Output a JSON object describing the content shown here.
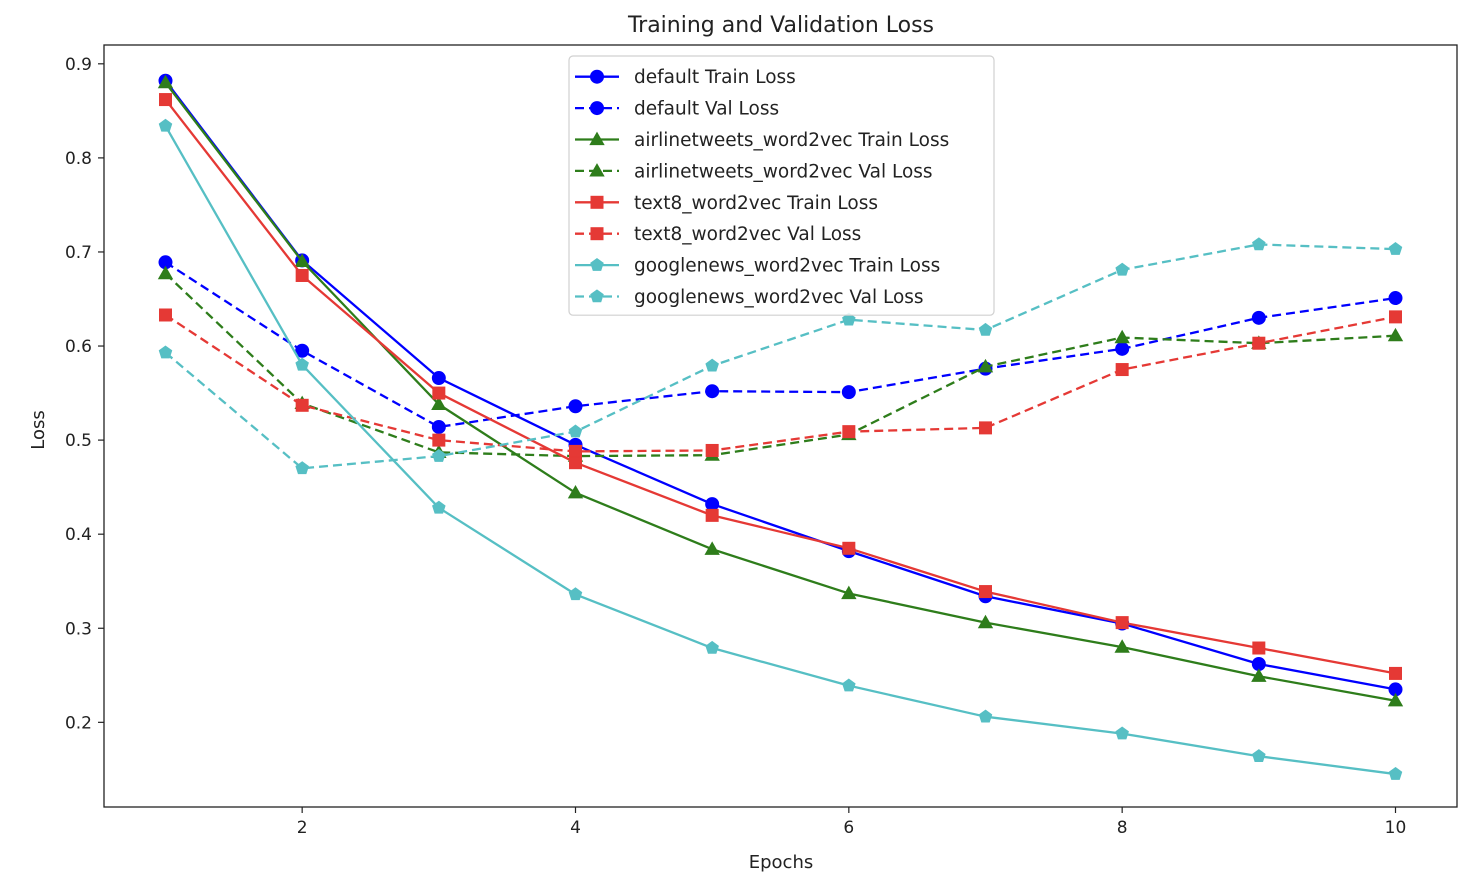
{
  "chart_data": {
    "type": "line",
    "title": "Training and Validation Loss",
    "xlabel": "Epochs",
    "ylabel": "Loss",
    "xlim": [
      0.55,
      10.45
    ],
    "ylim": [
      0.11,
      0.92
    ],
    "x_ticks": [
      2,
      4,
      6,
      8,
      10
    ],
    "y_ticks": [
      0.2,
      0.3,
      0.4,
      0.5,
      0.6,
      0.7,
      0.8,
      0.9
    ],
    "x_tick_labels": [
      "2",
      "4",
      "6",
      "8",
      "10"
    ],
    "y_tick_labels": [
      "0.2",
      "0.3",
      "0.4",
      "0.5",
      "0.6",
      "0.7",
      "0.8",
      "0.9"
    ],
    "grid": false,
    "legend_position": "top-center",
    "x": [
      1,
      2,
      3,
      4,
      5,
      6,
      7,
      8,
      9,
      10
    ],
    "series": [
      {
        "name": "default Train Loss",
        "color": "#0000ff",
        "dash": "solid",
        "marker": "circle",
        "values": [
          0.882,
          0.691,
          0.566,
          0.495,
          0.432,
          0.382,
          0.334,
          0.305,
          0.262,
          0.235
        ]
      },
      {
        "name": "default Val Loss",
        "color": "#0000ff",
        "dash": "dashed",
        "marker": "circle",
        "values": [
          0.689,
          0.595,
          0.514,
          0.536,
          0.552,
          0.551,
          0.576,
          0.597,
          0.63,
          0.651
        ]
      },
      {
        "name": "airlinetweets_word2vec Train Loss",
        "color": "#2e7d1b",
        "dash": "solid",
        "marker": "triangle",
        "values": [
          0.88,
          0.69,
          0.538,
          0.444,
          0.384,
          0.337,
          0.306,
          0.28,
          0.249,
          0.223
        ]
      },
      {
        "name": "airlinetweets_word2vec Val Loss",
        "color": "#2e7d1b",
        "dash": "dashed",
        "marker": "triangle",
        "values": [
          0.677,
          0.539,
          0.487,
          0.483,
          0.484,
          0.506,
          0.578,
          0.609,
          0.603,
          0.611
        ]
      },
      {
        "name": "text8_word2vec Train Loss",
        "color": "#e53935",
        "dash": "solid",
        "marker": "square",
        "values": [
          0.862,
          0.675,
          0.55,
          0.476,
          0.42,
          0.385,
          0.339,
          0.306,
          0.279,
          0.252
        ]
      },
      {
        "name": "text8_word2vec Val Loss",
        "color": "#e53935",
        "dash": "dashed",
        "marker": "square",
        "values": [
          0.633,
          0.537,
          0.5,
          0.488,
          0.489,
          0.509,
          0.513,
          0.575,
          0.603,
          0.631
        ]
      },
      {
        "name": "googlenews_word2vec Train Loss",
        "color": "#56bfc4",
        "dash": "solid",
        "marker": "pentagon",
        "values": [
          0.834,
          0.58,
          0.428,
          0.336,
          0.279,
          0.239,
          0.206,
          0.188,
          0.164,
          0.145
        ]
      },
      {
        "name": "googlenews_word2vec Val Loss",
        "color": "#56bfc4",
        "dash": "dashed",
        "marker": "pentagon",
        "values": [
          0.593,
          0.47,
          0.483,
          0.509,
          0.579,
          0.628,
          0.617,
          0.681,
          0.708,
          0.703
        ]
      }
    ]
  }
}
